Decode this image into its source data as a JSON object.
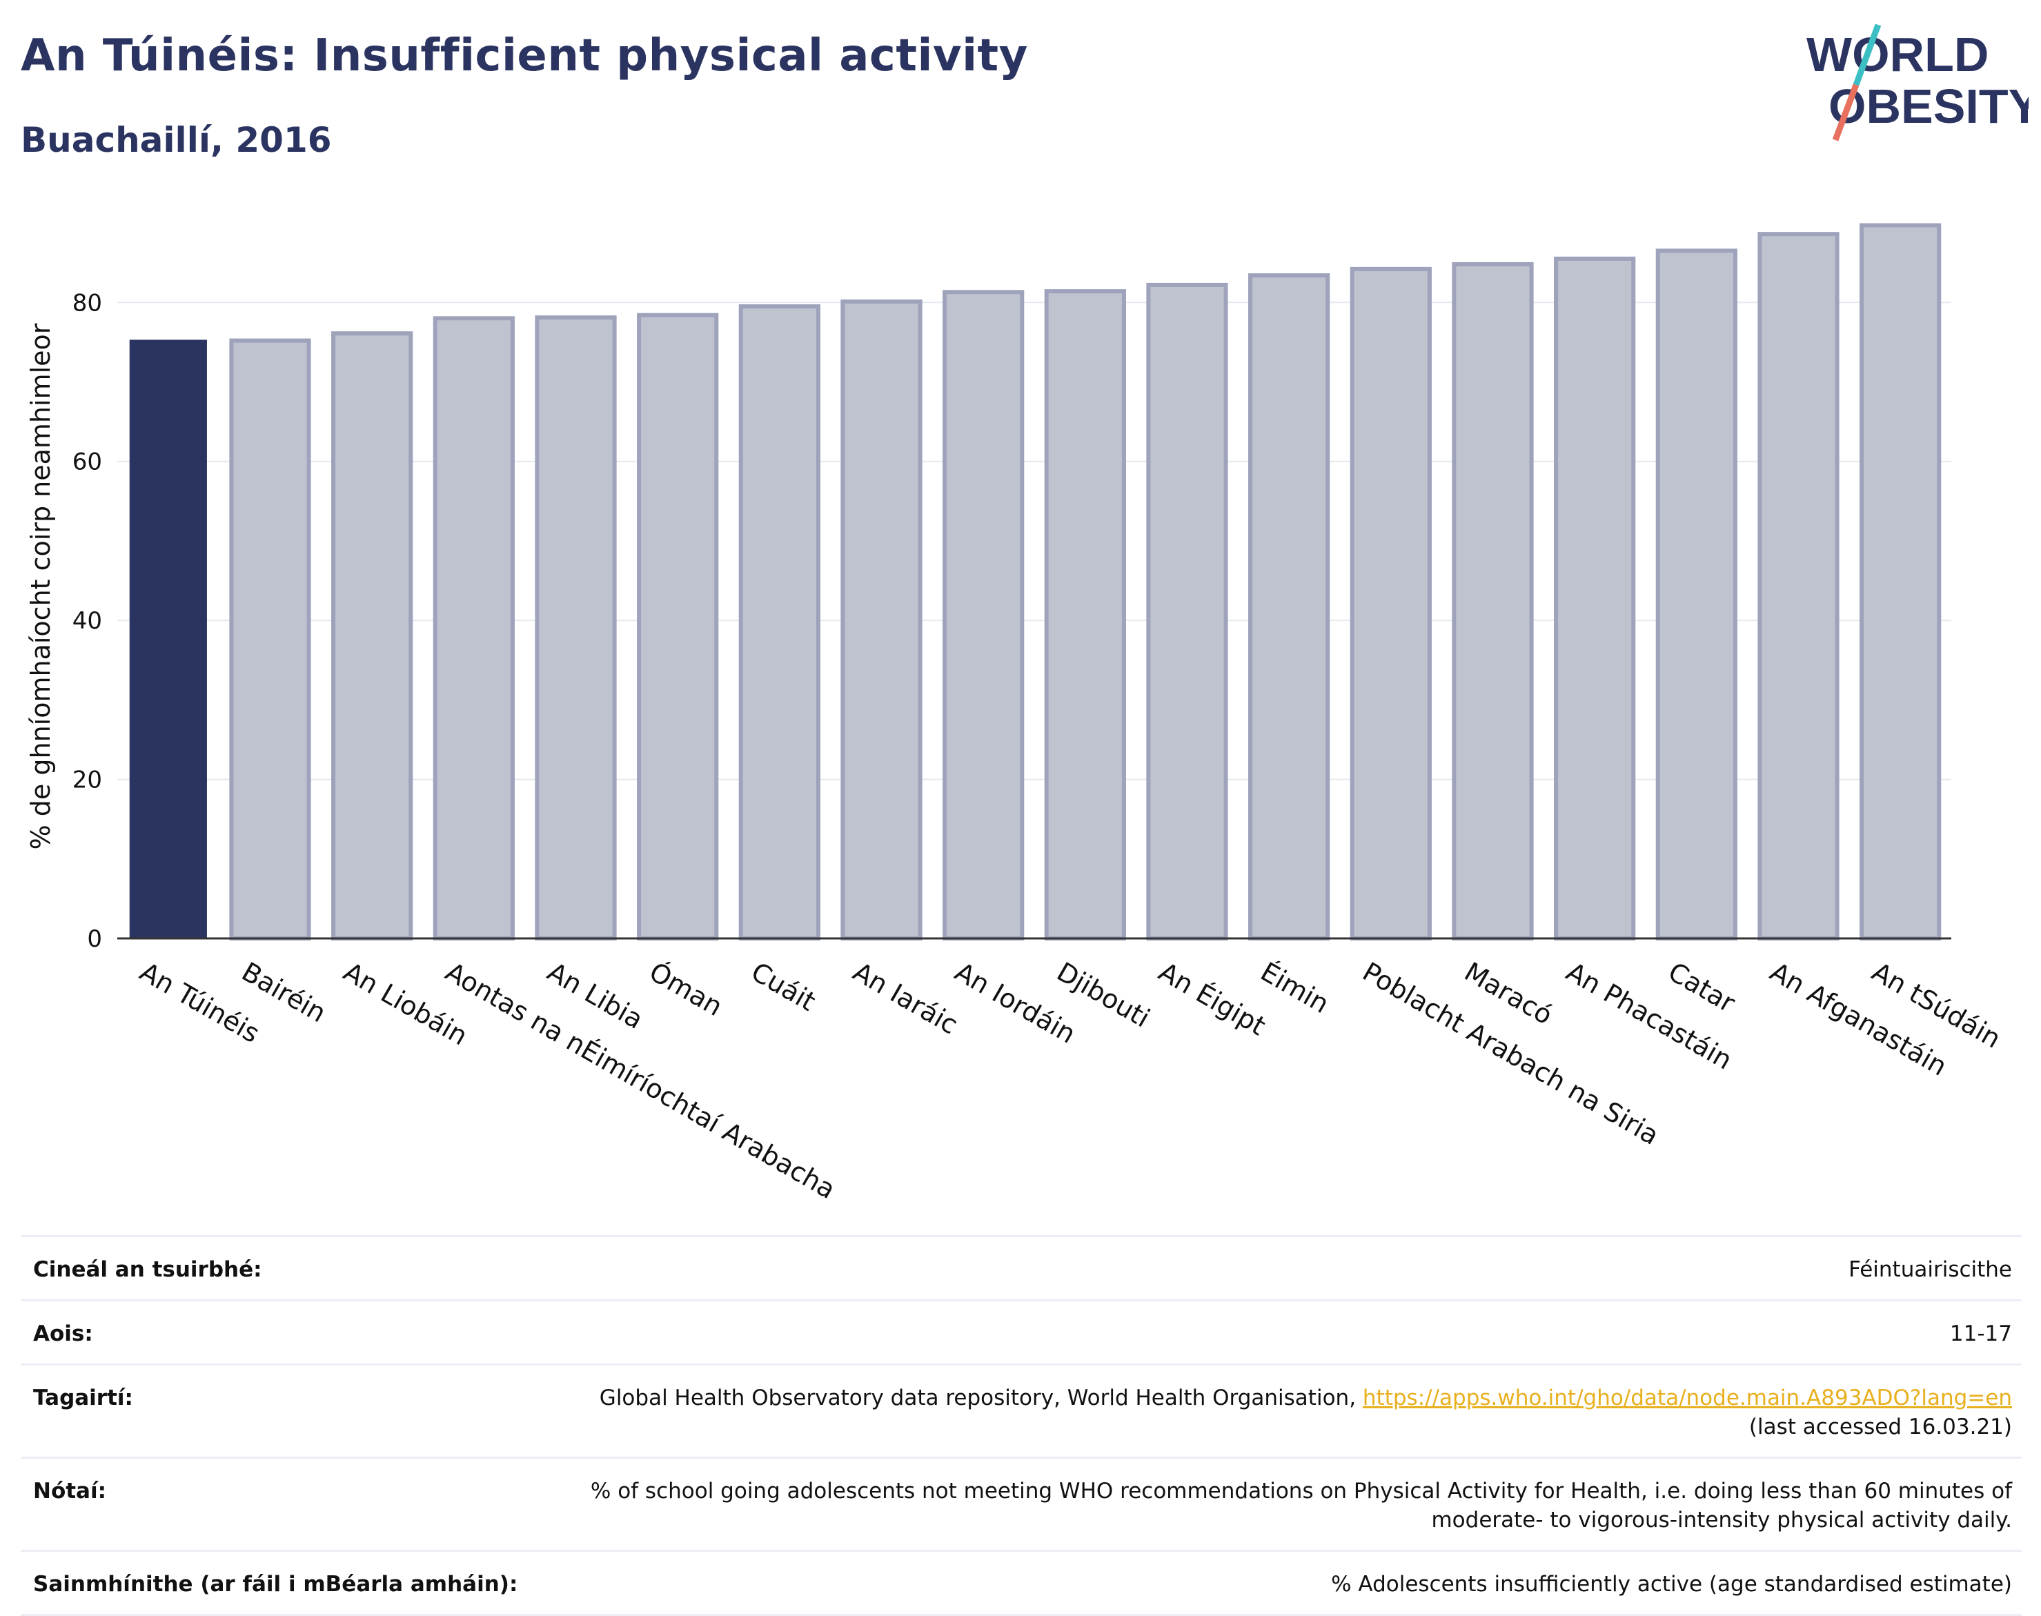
{
  "header": {
    "title": "An Túinéis: Insufficient physical activity",
    "subtitle": "Buachaillí, 2016"
  },
  "logo": {
    "line1": "WORLD",
    "line2": "OBESITY",
    "colors": {
      "text": "#2b3461",
      "slash_top": "#3cbfc4",
      "slash_bottom": "#e8705f"
    }
  },
  "chart_data": {
    "type": "bar",
    "ylabel": "% de ghníomhaíocht coirp neamhimleor",
    "xlabel": "",
    "ylim": [
      0,
      92
    ],
    "yticks": [
      0,
      20,
      40,
      60,
      80
    ],
    "grid": true,
    "highlight_index": 0,
    "colors": {
      "highlight": "#2b3461",
      "bar": "#bfc3d0",
      "bar_edge": "#9ea3bb"
    },
    "categories": [
      "An Túinéis",
      "Bairéin",
      "An Liobáin",
      "Aontas na nÉimíríochtaí Arabacha",
      "An Libia",
      "Óman",
      "Cuáit",
      "An Iaráic",
      "An Iordáin",
      "Djibouti",
      "An Éigipt",
      "Éimin",
      "Poblacht Arabach na Siria",
      "Maracó",
      "An Phacastáin",
      "Catar",
      "An Afganastáin",
      "An tSúdáin"
    ],
    "values": [
      75.3,
      75.2,
      76.1,
      78.0,
      78.1,
      78.4,
      79.5,
      80.1,
      81.3,
      81.4,
      82.2,
      83.4,
      84.2,
      84.8,
      85.5,
      86.5,
      88.6,
      89.7
    ]
  },
  "meta": {
    "survey_type_label": "Cineál an tsuirbhé:",
    "survey_type_value": "Féintuairiscithe",
    "age_label": "Aois:",
    "age_value": "11-17",
    "references_label": "Tagairtí:",
    "references_text": "Global Health Observatory data repository, World Health Organisation, ",
    "references_link": "https://apps.who.int/gho/data/node.main.A893ADO?lang=en",
    "references_accessed": "(last accessed 16.03.21)",
    "notes_label": "Nótaí:",
    "notes_line1": "% of school going adolescents not meeting WHO recommendations on Physical Activity for Health, i.e. doing less than 60 minutes of",
    "notes_line2": "moderate- to vigorous-intensity physical activity daily.",
    "definitions_label": "Sainmhínithe (ar fáil i mBéarla amháin):",
    "definitions_value": "% Adolescents insufficiently active (age standardised estimate)"
  }
}
